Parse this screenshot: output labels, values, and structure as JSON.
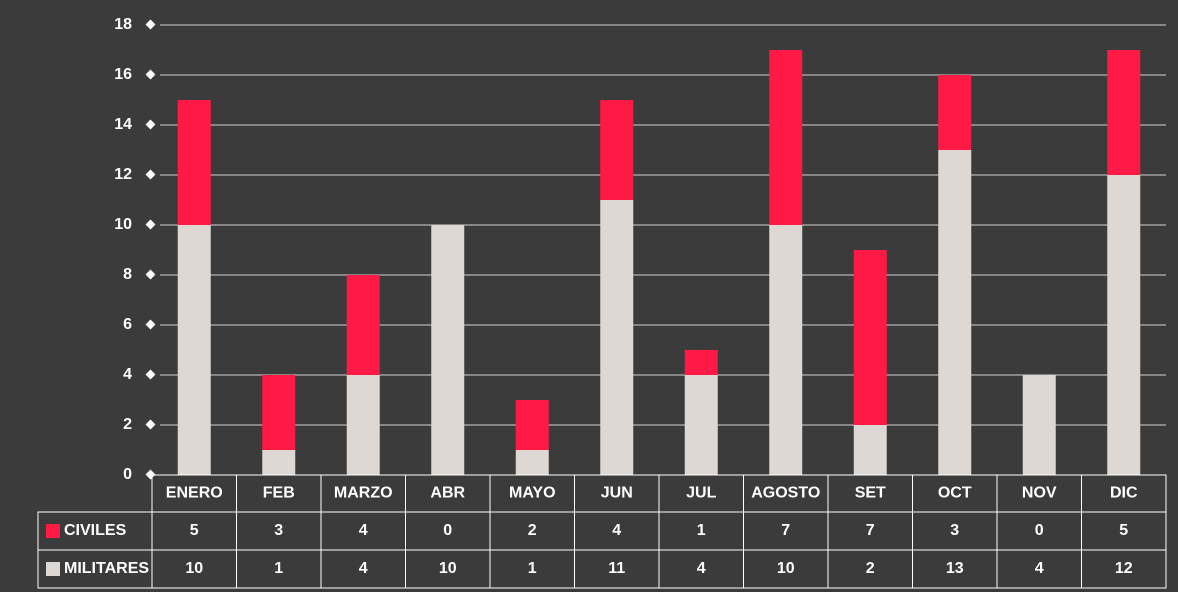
{
  "chart_data": {
    "type": "stacked_bar",
    "categories": [
      "ENERO",
      "FEB",
      "MARZO",
      "ABR",
      "MAYO",
      "JUN",
      "JUL",
      "AGOSTO",
      "SET",
      "OCT",
      "NOV",
      "DIC"
    ],
    "series": [
      {
        "name": "MILITARES",
        "color": "#ddd8d3",
        "values": [
          10,
          1,
          4,
          10,
          1,
          11,
          4,
          10,
          2,
          13,
          4,
          12
        ]
      },
      {
        "name": "CIVILES",
        "color": "#ff1a45",
        "values": [
          5,
          3,
          4,
          0,
          2,
          4,
          1,
          7,
          7,
          3,
          0,
          5
        ]
      }
    ],
    "ylim": [
      0,
      18
    ],
    "yticks": [
      0,
      2,
      4,
      6,
      8,
      10,
      12,
      14,
      16,
      18
    ],
    "grid": true
  }
}
